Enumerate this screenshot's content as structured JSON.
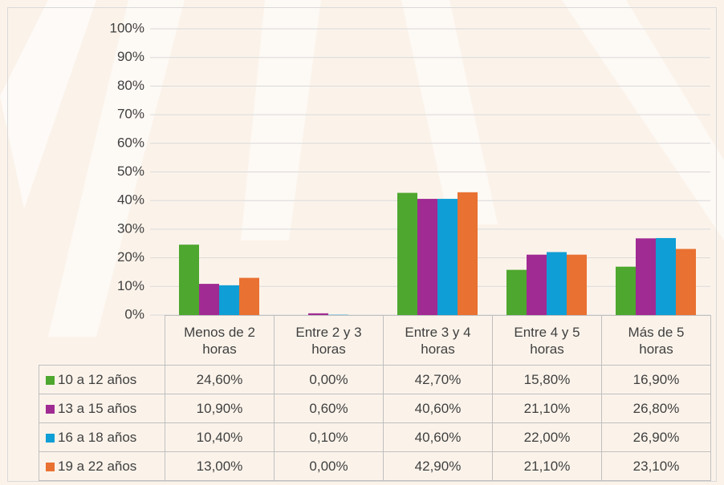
{
  "chart_data": {
    "type": "bar",
    "categories": [
      "Menos de 2 horas",
      "Entre 2 y 3 horas",
      "Entre 3 y 4 horas",
      "Entre 4 y 5 horas",
      "Más de 5 horas"
    ],
    "series": [
      {
        "name": "10 a 12 años",
        "color": "#4ea72e",
        "values": [
          24.6,
          0,
          42.7,
          15.8,
          16.9
        ],
        "value_labels": [
          "24,60%",
          "0,00%",
          "42,70%",
          "15,80%",
          "16,90%"
        ]
      },
      {
        "name": "13 a 15 años",
        "color": "#a02b93",
        "values": [
          10.9,
          0.6,
          40.6,
          21.1,
          26.8
        ],
        "value_labels": [
          "10,90%",
          "0,60%",
          "40,60%",
          "21,10%",
          "26,80%"
        ]
      },
      {
        "name": "16 a 18 años",
        "color": "#0f9ed5",
        "values": [
          10.4,
          0.1,
          40.6,
          22.0,
          26.9
        ],
        "value_labels": [
          "10,40%",
          "0,10%",
          "40,60%",
          "22,00%",
          "26,90%"
        ]
      },
      {
        "name": "19 a 22 años",
        "color": "#e97132",
        "values": [
          13.0,
          0,
          42.9,
          21.1,
          23.1
        ],
        "value_labels": [
          "13,00%",
          "0,00%",
          "42,90%",
          "21,10%",
          "23,10%"
        ]
      }
    ],
    "ylim": [
      0,
      100
    ],
    "yticks": [
      {
        "value": 0,
        "label": "0%"
      },
      {
        "value": 10,
        "label": "10%"
      },
      {
        "value": 20,
        "label": "20%"
      },
      {
        "value": 30,
        "label": "30%"
      },
      {
        "value": 40,
        "label": "40%"
      },
      {
        "value": 50,
        "label": "50%"
      },
      {
        "value": 60,
        "label": "60%"
      },
      {
        "value": 70,
        "label": "70%"
      },
      {
        "value": 80,
        "label": "80%"
      },
      {
        "value": 90,
        "label": "90%"
      },
      {
        "value": 100,
        "label": "100%"
      }
    ],
    "grid": true
  }
}
